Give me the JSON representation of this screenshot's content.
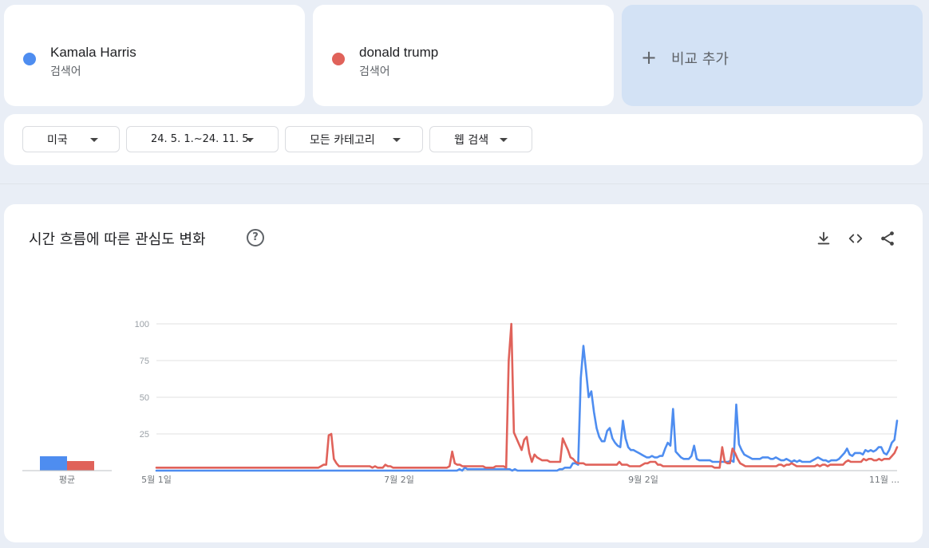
{
  "terms": [
    {
      "name": "Kamala Harris",
      "kind": "검색어",
      "color": "#4e8df0"
    },
    {
      "name": "donald trump",
      "kind": "검색어",
      "color": "#e0625a"
    }
  ],
  "add_compare": {
    "plus": "+",
    "label": "비교 추가"
  },
  "filters": {
    "region": "미국",
    "period": "24. 5. 1.~24. 11. 5.",
    "category": "모든 카테고리",
    "search_type": "웹 검색"
  },
  "panel": {
    "title": "시간 흐름에 따른 관심도 변화",
    "help": "?",
    "average_label": "평균"
  },
  "colors": {
    "harris": "#4e8df0",
    "trump": "#e0625a",
    "grid": "#e0e0e0",
    "axis_text": "#9aa0a6"
  },
  "chart_data": {
    "type": "line",
    "title": "시간 흐름에 따른 관심도 변화",
    "ylim": [
      0,
      100
    ],
    "yticks": [
      100,
      75,
      50,
      25
    ],
    "xticks": [
      "5월 1일",
      "7월 2일",
      "9월 2일",
      "11월 ..."
    ],
    "grid": true,
    "average": {
      "Kamala Harris": 9,
      "donald trump": 6
    },
    "series": [
      {
        "name": "Kamala Harris",
        "color": "#4e8df0",
        "values": [
          0,
          0,
          0,
          0,
          0,
          0,
          0,
          0,
          0,
          0,
          0,
          0,
          0,
          0,
          0,
          0,
          0,
          0,
          0,
          0,
          0,
          0,
          0,
          0,
          0,
          0,
          0,
          0,
          0,
          0,
          0,
          0,
          0,
          0,
          0,
          0,
          0,
          0,
          0,
          0,
          0,
          0,
          0,
          0,
          0,
          0,
          0,
          0,
          0,
          0,
          0,
          0,
          0,
          0,
          0,
          0,
          0,
          0,
          0,
          0,
          0,
          0,
          0,
          0,
          0,
          0,
          0,
          0,
          0,
          0,
          0,
          0,
          0,
          0,
          0,
          0,
          0,
          0,
          0,
          0,
          0,
          0,
          0,
          0,
          0,
          0,
          0,
          0,
          0,
          0,
          0,
          0,
          0,
          0,
          0,
          0,
          0,
          0,
          0,
          0,
          0,
          0,
          0,
          0,
          0,
          0,
          0,
          0,
          0,
          0,
          0,
          0,
          0,
          0,
          0,
          1,
          0,
          2,
          1,
          1,
          1,
          1,
          1,
          1,
          1,
          1,
          1,
          1,
          1,
          1,
          1,
          1,
          1,
          1,
          1,
          0,
          1,
          0,
          0,
          0,
          0,
          0,
          0,
          0,
          0,
          0,
          0,
          0,
          0,
          0,
          0,
          0,
          0,
          1,
          1,
          2,
          2,
          2,
          5,
          5,
          4,
          63,
          85,
          68,
          50,
          54,
          40,
          29,
          23,
          20,
          20,
          27,
          29,
          22,
          19,
          17,
          16,
          34,
          22,
          16,
          14,
          14,
          13,
          12,
          11,
          10,
          9,
          9,
          10,
          9,
          9,
          10,
          10,
          15,
          19,
          17,
          42,
          13,
          11,
          9,
          8,
          8,
          8,
          10,
          17,
          8,
          7,
          7,
          7,
          7,
          7,
          6,
          6,
          6,
          6,
          6,
          6,
          6,
          7,
          6,
          45,
          18,
          14,
          11,
          10,
          9,
          8,
          8,
          8,
          8,
          9,
          9,
          9,
          8,
          8,
          9,
          8,
          7,
          7,
          8,
          7,
          6,
          7,
          6,
          7,
          6,
          6,
          6,
          6,
          7,
          8,
          9,
          8,
          7,
          7,
          6,
          7,
          7,
          7,
          8,
          10,
          12,
          15,
          11,
          10,
          12,
          12,
          12,
          11,
          14,
          13,
          14,
          13,
          14,
          16,
          16,
          12,
          11,
          14,
          19,
          21,
          34
        ]
      },
      {
        "name": "donald trump",
        "color": "#e0625a",
        "values": [
          2,
          2,
          2,
          2,
          2,
          2,
          2,
          2,
          2,
          2,
          2,
          2,
          2,
          2,
          2,
          2,
          2,
          2,
          2,
          2,
          2,
          2,
          2,
          2,
          2,
          2,
          2,
          2,
          2,
          2,
          2,
          2,
          2,
          2,
          2,
          2,
          2,
          2,
          2,
          2,
          2,
          2,
          2,
          2,
          2,
          2,
          2,
          2,
          2,
          2,
          2,
          2,
          2,
          2,
          2,
          2,
          2,
          2,
          2,
          2,
          2,
          2,
          2,
          2,
          3,
          4,
          4,
          24,
          25,
          8,
          5,
          3,
          3,
          3,
          3,
          3,
          3,
          3,
          3,
          3,
          3,
          3,
          3,
          3,
          2,
          3,
          2,
          2,
          2,
          4,
          3,
          3,
          2,
          2,
          2,
          2,
          2,
          2,
          2,
          2,
          2,
          2,
          2,
          2,
          2,
          2,
          2,
          2,
          2,
          2,
          2,
          2,
          2,
          2,
          3,
          13,
          5,
          4,
          4,
          3,
          3,
          3,
          3,
          3,
          3,
          3,
          3,
          3,
          2,
          2,
          2,
          2,
          3,
          3,
          3,
          3,
          2,
          75,
          100,
          26,
          22,
          18,
          14,
          21,
          23,
          12,
          6,
          11,
          9,
          8,
          7,
          7,
          7,
          6,
          6,
          6,
          6,
          6,
          22,
          18,
          14,
          9,
          8,
          6,
          5,
          5,
          5,
          4,
          4,
          4,
          4,
          4,
          4,
          4,
          4,
          4,
          4,
          4,
          4,
          4,
          6,
          4,
          4,
          4,
          3,
          3,
          3,
          3,
          3,
          4,
          5,
          5,
          6,
          6,
          6,
          4,
          4,
          3,
          3,
          3,
          3,
          3,
          3,
          3,
          3,
          3,
          3,
          3,
          3,
          3,
          3,
          3,
          3,
          3,
          3,
          3,
          3,
          2,
          2,
          2,
          16,
          6,
          5,
          5,
          15,
          12,
          8,
          5,
          4,
          3,
          3,
          3,
          3,
          3,
          3,
          3,
          3,
          3,
          3,
          3,
          3,
          3,
          4,
          4,
          3,
          4,
          4,
          5,
          4,
          3,
          3,
          3,
          3,
          3,
          3,
          3,
          3,
          4,
          3,
          4,
          4,
          3,
          4,
          4,
          4,
          4,
          4,
          4,
          6,
          7,
          6,
          6,
          6,
          6,
          6,
          8,
          7,
          8,
          8,
          7,
          7,
          8,
          7,
          8,
          8,
          8,
          10,
          12,
          16
        ]
      }
    ]
  }
}
